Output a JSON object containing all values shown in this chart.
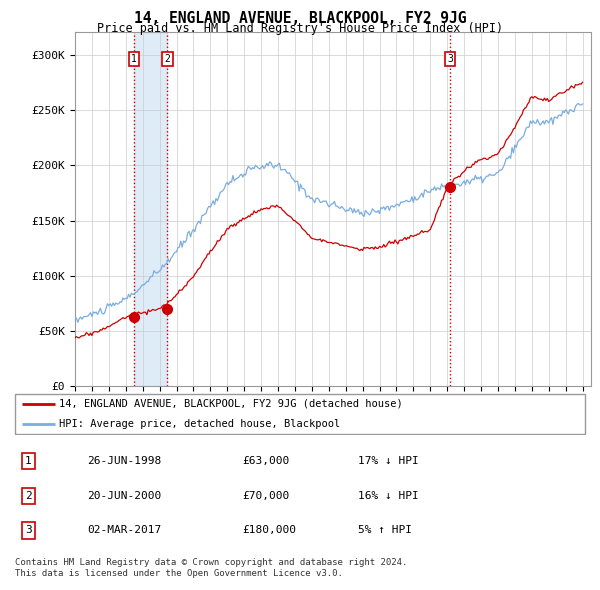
{
  "title": "14, ENGLAND AVENUE, BLACKPOOL, FY2 9JG",
  "subtitle": "Price paid vs. HM Land Registry's House Price Index (HPI)",
  "xlim_start": 1995.0,
  "xlim_end": 2025.5,
  "ylim": [
    0,
    320000
  ],
  "yticks": [
    0,
    50000,
    100000,
    150000,
    200000,
    250000,
    300000
  ],
  "ytick_labels": [
    "£0",
    "£50K",
    "£100K",
    "£150K",
    "£200K",
    "£250K",
    "£300K"
  ],
  "hpi_color": "#7aade0",
  "price_color": "#cc0000",
  "vline_color": "#cc0000",
  "shade_color": "#d0e4f5",
  "transactions": [
    {
      "label": "1",
      "date": 1998.48,
      "price": 63000,
      "date_str": "26-JUN-1998",
      "price_str": "£63,000",
      "hpi_str": "17% ↓ HPI"
    },
    {
      "label": "2",
      "date": 2000.46,
      "price": 70000,
      "date_str": "20-JUN-2000",
      "price_str": "£70,000",
      "hpi_str": "16% ↓ HPI"
    },
    {
      "label": "3",
      "date": 2017.17,
      "price": 180000,
      "date_str": "02-MAR-2017",
      "price_str": "£180,000",
      "hpi_str": "5% ↑ HPI"
    }
  ],
  "legend_line1": "14, ENGLAND AVENUE, BLACKPOOL, FY2 9JG (detached house)",
  "legend_line2": "HPI: Average price, detached house, Blackpool",
  "footer1": "Contains HM Land Registry data © Crown copyright and database right 2024.",
  "footer2": "This data is licensed under the Open Government Licence v3.0.",
  "background_color": "#ffffff",
  "grid_color": "#cccccc"
}
